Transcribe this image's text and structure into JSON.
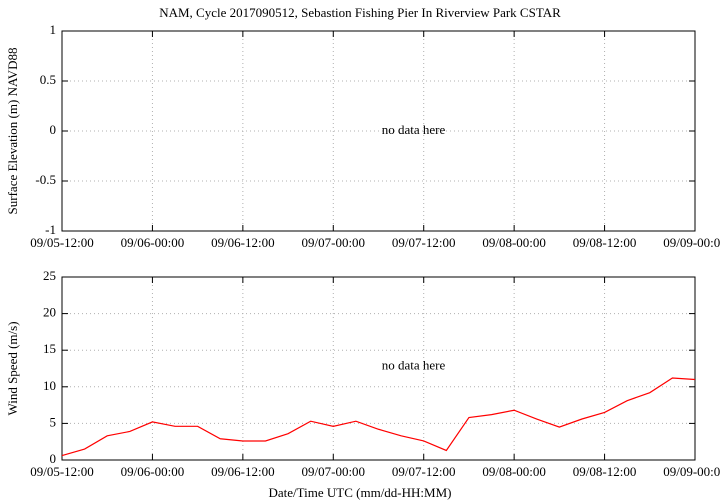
{
  "chart_data": [
    {
      "type": "line",
      "title": "NAM, Cycle 2017090512,  Sebastion Fishing Pier In Riverview Park CSTAR",
      "ylabel": "Surface Elevation (m) NAVD88",
      "annotation": "no data here",
      "xlim": [
        "09/05-12:00",
        "09/09-00:00"
      ],
      "xticks": [
        "09/05-12:00",
        "09/06-00:00",
        "09/06-12:00",
        "09/07-00:00",
        "09/07-12:00",
        "09/08-00:00",
        "09/08-12:00",
        "09/09-00:00"
      ],
      "ylim": [
        -1,
        1
      ],
      "yticks": [
        -1,
        -0.5,
        0,
        0.5,
        1
      ],
      "grid": true
    },
    {
      "type": "line",
      "ylabel": "Wind Speed (m/s)",
      "xlabel": "Date/Time UTC (mm/dd-HH:MM)",
      "annotation": "no data here",
      "x": [
        "09/05-12:00",
        "09/05-15:00",
        "09/05-18:00",
        "09/05-21:00",
        "09/06-00:00",
        "09/06-03:00",
        "09/06-06:00",
        "09/06-09:00",
        "09/06-12:00",
        "09/06-15:00",
        "09/06-18:00",
        "09/06-21:00",
        "09/07-00:00",
        "09/07-03:00",
        "09/07-06:00",
        "09/07-09:00",
        "09/07-12:00",
        "09/07-15:00",
        "09/07-18:00",
        "09/07-21:00",
        "09/08-00:00",
        "09/08-03:00",
        "09/08-06:00",
        "09/08-09:00",
        "09/08-12:00",
        "09/08-15:00",
        "09/08-18:00",
        "09/08-21:00",
        "09/09-00:00"
      ],
      "values": [
        0.6,
        1.5,
        3.3,
        3.9,
        5.2,
        4.6,
        4.6,
        2.9,
        2.6,
        2.6,
        3.6,
        5.3,
        4.6,
        5.3,
        4.2,
        3.3,
        2.6,
        1.3,
        5.8,
        6.2,
        6.8,
        5.6,
        4.5,
        5.6,
        6.5,
        8.1,
        9.2,
        11.2,
        11.0
      ],
      "color": "#ff0000",
      "xlim": [
        "09/05-12:00",
        "09/09-00:00"
      ],
      "xticks": [
        "09/05-12:00",
        "09/06-00:00",
        "09/06-12:00",
        "09/07-00:00",
        "09/07-12:00",
        "09/08-00:00",
        "09/08-12:00",
        "09/09-00:00"
      ],
      "ylim": [
        0,
        25
      ],
      "yticks": [
        0,
        5,
        10,
        15,
        20,
        25
      ],
      "grid": true
    }
  ]
}
